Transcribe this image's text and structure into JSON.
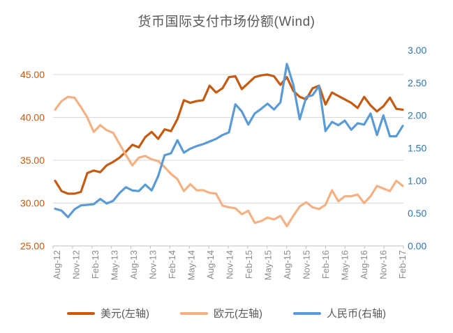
{
  "title": "货币国际支付市场份额(Wind)",
  "legend": {
    "items": [
      {
        "label": "美元(左轴)",
        "color": "#C55A11"
      },
      {
        "label": "欧元(左轴)",
        "color": "#F4B183"
      },
      {
        "label": "人民币(右轴)",
        "color": "#5B9BD5"
      }
    ]
  },
  "left_axis": {
    "tick_labels": [
      "45.00",
      "40.00",
      "35.00",
      "30.00",
      "25.00"
    ],
    "label_color": "#C55A11"
  },
  "right_axis": {
    "tick_labels": [
      "3.00",
      "2.50",
      "2.00",
      "1.50",
      "1.00",
      "0.50",
      "0.00"
    ],
    "label_color": "#2E75B6"
  },
  "x_axis": {
    "tick_labels": [
      "Aug-12",
      "Nov-12",
      "Feb-13",
      "May-13",
      "Aug-13",
      "Nov-13",
      "Feb-14",
      "May-14",
      "Aug-14",
      "Nov-14",
      "Feb-15",
      "May-15",
      "Aug-15",
      "Nov-15",
      "Feb-16",
      "May-16",
      "Aug-16",
      "Nov-16",
      "Feb-17"
    ],
    "label_color": "#8C8C8C"
  },
  "chart_data": {
    "type": "line",
    "title": "货币国际支付市场份额(Wind)",
    "x": [
      "Aug-12",
      "Sep-12",
      "Oct-12",
      "Nov-12",
      "Dec-12",
      "Jan-13",
      "Feb-13",
      "Mar-13",
      "Apr-13",
      "May-13",
      "Jun-13",
      "Jul-13",
      "Aug-13",
      "Sep-13",
      "Oct-13",
      "Nov-13",
      "Dec-13",
      "Jan-14",
      "Feb-14",
      "Mar-14",
      "Apr-14",
      "May-14",
      "Jun-14",
      "Jul-14",
      "Aug-14",
      "Sep-14",
      "Oct-14",
      "Nov-14",
      "Dec-14",
      "Jan-15",
      "Feb-15",
      "Mar-15",
      "Apr-15",
      "May-15",
      "Jun-15",
      "Jul-15",
      "Aug-15",
      "Sep-15",
      "Oct-15",
      "Nov-15",
      "Dec-15",
      "Jan-16",
      "Feb-16",
      "Mar-16",
      "Apr-16",
      "May-16",
      "Jun-16",
      "Jul-16",
      "Aug-16",
      "Sep-16",
      "Oct-16",
      "Nov-16",
      "Dec-16",
      "Jan-17",
      "Feb-17"
    ],
    "series": [
      {
        "name": "美元(左轴)",
        "axis": "left",
        "color": "#C55A11",
        "values": [
          32.6,
          31.4,
          31.1,
          31.1,
          31.3,
          33.5,
          33.8,
          33.6,
          34.4,
          34.8,
          35.3,
          36.0,
          36.8,
          36.5,
          37.7,
          38.3,
          37.5,
          38.6,
          38.4,
          39.8,
          42.0,
          41.7,
          41.9,
          42.0,
          43.7,
          42.9,
          43.4,
          44.7,
          44.8,
          43.3,
          44.0,
          44.7,
          44.9,
          45.0,
          44.8,
          43.8,
          44.7,
          43.1,
          42.4,
          42.1,
          43.4,
          43.7,
          41.5,
          42.9,
          42.5,
          42.1,
          41.7,
          41.1,
          42.4,
          41.4,
          40.7,
          41.3,
          42.3,
          41.0,
          40.9
        ]
      },
      {
        "name": "欧元(左轴)",
        "axis": "left",
        "color": "#F4B183",
        "values": [
          40.9,
          41.9,
          42.4,
          42.3,
          41.2,
          40.0,
          38.3,
          39.1,
          38.5,
          38.2,
          36.9,
          35.6,
          34.4,
          35.3,
          35.5,
          35.1,
          34.9,
          34.2,
          33.4,
          32.8,
          31.4,
          32.2,
          31.5,
          31.5,
          31.2,
          31.1,
          29.7,
          29.5,
          29.4,
          28.7,
          29.1,
          27.7,
          27.9,
          28.3,
          28.1,
          28.5,
          27.3,
          28.5,
          29.6,
          30.1,
          29.5,
          29.3,
          29.8,
          31.5,
          30.2,
          30.8,
          30.8,
          31.0,
          30.0,
          30.8,
          32.0,
          31.7,
          31.4,
          32.6,
          32.0
        ]
      },
      {
        "name": "人民币(右轴)",
        "axis": "right",
        "color": "#5B9BD5",
        "values": [
          0.57,
          0.54,
          0.44,
          0.56,
          0.62,
          0.63,
          0.64,
          0.72,
          0.65,
          0.69,
          0.81,
          0.9,
          0.85,
          0.84,
          0.94,
          0.85,
          1.07,
          1.39,
          1.42,
          1.62,
          1.43,
          1.49,
          1.53,
          1.56,
          1.6,
          1.64,
          1.7,
          1.74,
          2.17,
          2.06,
          1.86,
          2.03,
          2.1,
          2.18,
          2.09,
          2.2,
          2.79,
          2.47,
          1.94,
          2.28,
          2.31,
          2.45,
          1.76,
          1.9,
          1.85,
          1.92,
          1.78,
          1.88,
          1.86,
          2.03,
          1.7,
          2.0,
          1.68,
          1.68,
          1.84
        ]
      }
    ],
    "ylim_left": [
      25,
      45
    ],
    "ylim_right": [
      0,
      3
    ],
    "left_ticks": [
      45,
      40,
      35,
      30,
      25
    ],
    "right_ticks": [
      3.0,
      2.5,
      2.0,
      1.5,
      1.0,
      0.5,
      0.0
    ],
    "grid": "horizontal-left-axis",
    "legend_position": "bottom"
  }
}
